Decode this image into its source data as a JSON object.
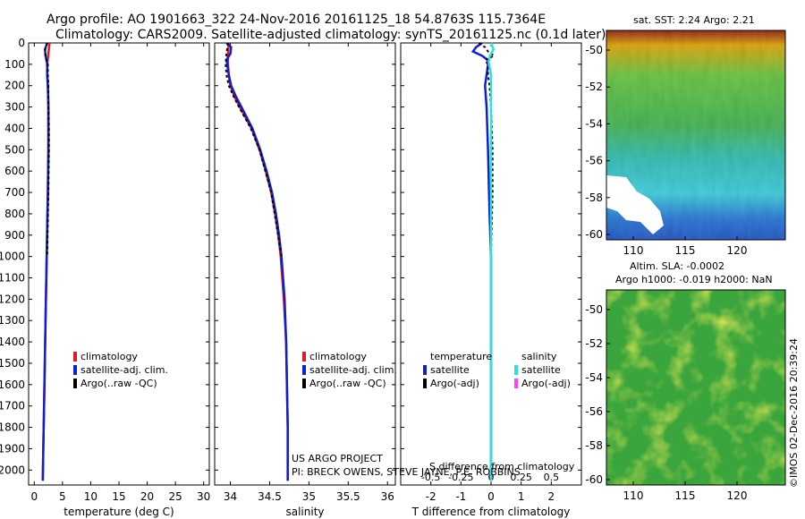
{
  "title": {
    "line1": "Argo profile: AO 1901663_322 24-Nov-2016 20161125_18 54.8763S 115.7364E",
    "line2": "Climatology: CARS2009. Satellite-adjusted climatology: synTS_20161125.nc (0.1d later)"
  },
  "colors": {
    "climatology": "#e41a1c",
    "satellite": "#0a1fd6",
    "argo": "#000000",
    "satellite_s": "#30e0e0",
    "argo_s": "#ff40ff"
  },
  "chart_data": [
    {
      "type": "line",
      "name": "temperature-profile",
      "xlabel": "temperature (deg C)",
      "ylabel": "",
      "xlim": [
        -1,
        31
      ],
      "ylim": [
        2070,
        0
      ],
      "xticks": [
        0,
        5,
        10,
        15,
        20,
        25,
        30
      ],
      "yticks": [
        0,
        100,
        200,
        300,
        400,
        500,
        600,
        700,
        800,
        900,
        1000,
        1100,
        1200,
        1300,
        1400,
        1500,
        1600,
        1700,
        1800,
        1900,
        2000
      ],
      "legend": [
        "climatology",
        "satellite-adj. clim.",
        "Argo(..raw -QC)"
      ],
      "series": [
        {
          "name": "climatology",
          "depth": [
            0,
            50,
            100,
            150,
            200,
            300,
            400,
            500,
            700,
            1000,
            1300,
            1600,
            1900,
            2050
          ],
          "values": [
            2.7,
            2.5,
            2.3,
            2.3,
            2.4,
            2.5,
            2.5,
            2.5,
            2.4,
            2.2,
            2.0,
            1.8,
            1.6,
            1.5
          ]
        },
        {
          "name": "satellite-adj. clim.",
          "depth": [
            0,
            30,
            60,
            100,
            150,
            200,
            300,
            400,
            500,
            700,
            1000,
            1300,
            1600,
            1900,
            2050
          ],
          "values": [
            2.3,
            1.9,
            2.0,
            2.3,
            2.3,
            2.4,
            2.5,
            2.5,
            2.5,
            2.4,
            2.2,
            2.0,
            1.8,
            1.6,
            1.5
          ]
        },
        {
          "name": "Argo(..raw -QC)",
          "depth": [
            0,
            30,
            60,
            100,
            150,
            200,
            300,
            400,
            500,
            700,
            1000
          ],
          "values": [
            2.3,
            1.9,
            2.0,
            2.4,
            2.4,
            2.5,
            2.5,
            2.6,
            2.6,
            2.5,
            2.3
          ]
        }
      ]
    },
    {
      "type": "line",
      "name": "salinity-profile",
      "xlabel": "salinity",
      "xlim": [
        33.8,
        36.1
      ],
      "ylim": [
        2070,
        0
      ],
      "xticks": [
        34,
        34.5,
        35,
        35.5,
        36
      ],
      "legend": [
        "climatology",
        "satellite-adj. clim.",
        "Argo(..raw -QC)"
      ],
      "series": [
        {
          "name": "climatology",
          "depth": [
            0,
            50,
            100,
            150,
            200,
            250,
            300,
            400,
            500,
            600,
            700,
            800,
            900,
            1000,
            1200,
            1400,
            1600,
            1800,
            2050
          ],
          "values": [
            33.98,
            33.97,
            33.97,
            33.98,
            34.0,
            34.05,
            34.12,
            34.27,
            34.37,
            34.45,
            34.52,
            34.57,
            34.61,
            34.64,
            34.68,
            34.71,
            34.72,
            34.73,
            34.73
          ]
        },
        {
          "name": "satellite-adj. clim.",
          "depth": [
            0,
            20,
            50,
            80,
            100,
            150,
            200,
            250,
            300,
            400,
            500,
            600,
            700,
            800,
            900,
            1000,
            1200,
            1400,
            1600,
            1800,
            2050
          ],
          "values": [
            33.95,
            34.01,
            34.0,
            33.95,
            33.96,
            33.98,
            34.01,
            34.07,
            34.14,
            34.28,
            34.38,
            34.46,
            34.53,
            34.58,
            34.62,
            34.65,
            34.69,
            34.71,
            34.72,
            34.73,
            34.73
          ]
        },
        {
          "name": "Argo(..raw -QC)",
          "depth": [
            0,
            50,
            100,
            150,
            200,
            250,
            300,
            400,
            500,
            700,
            1000
          ],
          "values": [
            33.97,
            33.95,
            33.94,
            33.95,
            33.98,
            34.04,
            34.11,
            34.26,
            34.37,
            34.52,
            34.65
          ]
        }
      ]
    },
    {
      "type": "line",
      "name": "difference-profile",
      "xlabel": "T difference from climatology",
      "xlim": [
        -3,
        3
      ],
      "ylim": [
        2070,
        0
      ],
      "xticks": [
        -2,
        -1,
        0,
        1,
        2
      ],
      "top_ticks": [
        "-0.5",
        "-0.25",
        "0",
        "0.25",
        "0.5"
      ],
      "top_label": "S difference from climatology",
      "legend_left_title": "temperature",
      "legend_right_title": "salinity",
      "legend": [
        "satellite",
        "Argo(-adj)",
        "satellite",
        "Argo(-adj)"
      ],
      "series": [
        {
          "name": "T satellite",
          "depth": [
            0,
            20,
            40,
            60,
            80,
            100,
            150,
            200,
            300,
            500,
            800,
            1000,
            2050
          ],
          "values": [
            -0.3,
            -0.5,
            -0.6,
            -0.3,
            -0.1,
            -0.1,
            -0.15,
            -0.2,
            -0.15,
            -0.1,
            -0.05,
            0,
            0
          ]
        },
        {
          "name": "T Argo(-adj)",
          "depth": [
            0,
            20,
            40,
            60,
            80,
            100,
            150,
            200,
            300,
            500,
            700,
            1000
          ],
          "values": [
            -0.4,
            -0.2,
            -0.1,
            0.1,
            -0.2,
            -0.1,
            -0.1,
            -0.05,
            0,
            0.05,
            0.05,
            0
          ]
        },
        {
          "name": "S satellite",
          "depth": [
            0,
            30,
            60,
            90,
            150,
            200,
            400,
            1000,
            2050
          ],
          "values": [
            0.0,
            0.02,
            -0.01,
            -0.02,
            0.0,
            0.0,
            0.0,
            0.0,
            0.0
          ]
        }
      ]
    },
    {
      "type": "heatmap",
      "name": "sst-map",
      "title": "sat. SST: 2.24  Argo: 2.21",
      "xticks": [
        "110",
        "115",
        "120"
      ],
      "yticks": [
        "-50",
        "-52",
        "-54",
        "-56",
        "-58",
        "-60"
      ]
    },
    {
      "type": "heatmap",
      "name": "sla-map",
      "title1": "Altim. SLA: -0.0002",
      "title2": "Argo h1000: -0.019  h2000: NaN",
      "xticks": [
        "110",
        "115",
        "120"
      ],
      "yticks": [
        "-50",
        "-52",
        "-54",
        "-56",
        "-58",
        "-60"
      ]
    }
  ],
  "credit": {
    "line1": "US ARGO PROJECT",
    "line2": "PI: BRECK OWENS, STEVE JAYNE, P.E. ROBBINS"
  },
  "watermark": "©IMOS 02-Dec-2016 20:39:24"
}
